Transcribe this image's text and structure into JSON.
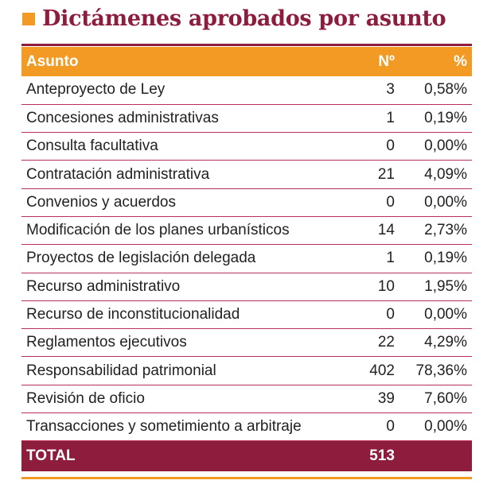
{
  "title": "Dictámenes aprobados por asunto",
  "colors": {
    "accent_orange": "#f39a25",
    "accent_maroon": "#8e1c3d"
  },
  "table": {
    "headers": [
      "Asunto",
      "Nº",
      "%"
    ],
    "rows": [
      [
        "Anteproyecto de Ley",
        "3",
        "0,58%"
      ],
      [
        "Concesiones administrativas",
        "1",
        "0,19%"
      ],
      [
        "Consulta facultativa",
        "0",
        "0,00%"
      ],
      [
        "Contratación administrativa",
        "21",
        "4,09%"
      ],
      [
        "Convenios y acuerdos",
        "0",
        "0,00%"
      ],
      [
        "Modificación de los planes urbanísticos",
        "14",
        "2,73%"
      ],
      [
        "Proyectos de legislación delegada",
        "1",
        "0,19%"
      ],
      [
        "Recurso administrativo",
        "10",
        "1,95%"
      ],
      [
        "Recurso de inconstitucionalidad",
        "0",
        "0,00%"
      ],
      [
        "Reglamentos ejecutivos",
        "22",
        "4,29%"
      ],
      [
        "Responsabilidad patrimonial",
        "402",
        "78,36%"
      ],
      [
        "Revisión de oficio",
        "39",
        "7,60%"
      ],
      [
        "Transacciones y sometimiento a arbitraje",
        "0",
        "0,00%"
      ]
    ],
    "total": {
      "label": "TOTAL",
      "count": "513",
      "percent": ""
    }
  }
}
